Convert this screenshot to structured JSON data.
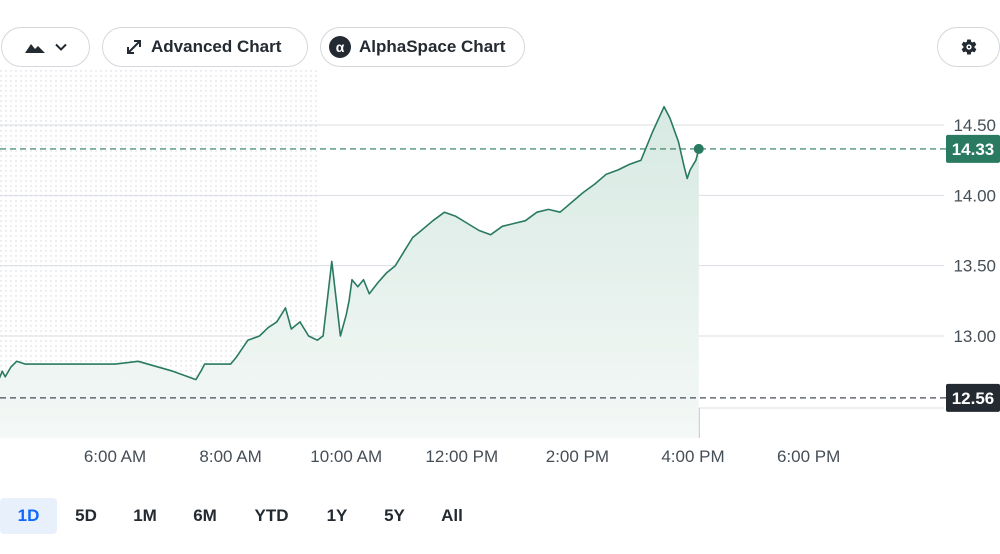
{
  "toolbar": {
    "chart_type_icon": "mountain-icon",
    "advanced_chart_label": "Advanced Chart",
    "alphaspace_chart_label": "AlphaSpace Chart",
    "alphaspace_badge": "α",
    "settings_icon": "gear-icon"
  },
  "range_tabs": [
    {
      "label": "1D",
      "active": true
    },
    {
      "label": "5D",
      "active": false
    },
    {
      "label": "1M",
      "active": false
    },
    {
      "label": "6M",
      "active": false
    },
    {
      "label": "YTD",
      "active": false
    },
    {
      "label": "1Y",
      "active": false
    },
    {
      "label": "5Y",
      "active": false
    },
    {
      "label": "All",
      "active": false
    }
  ],
  "colors": {
    "line": "#2a7a62",
    "area_top": "#d7e9e2",
    "current_tag": "#2a7a62",
    "previous_close_tag": "#232a31",
    "grid": "#d9dde2",
    "axis_text": "#464e56"
  },
  "chart_data": {
    "type": "area",
    "title": "",
    "xlabel": "",
    "ylabel": "",
    "x_ticks": [
      "6:00 AM",
      "8:00 AM",
      "10:00 AM",
      "12:00 PM",
      "2:00 PM",
      "4:00 PM",
      "6:00 PM"
    ],
    "y_ticks": [
      "13.00",
      "13.50",
      "14.00",
      "14.50"
    ],
    "ylim": [
      12.35,
      14.85
    ],
    "x_range_hours": [
      4.0,
      20.0
    ],
    "premarket_shaded_until": "9:30 AM",
    "current_price": "14.33",
    "previous_close": "12.56",
    "series": [
      {
        "x": [
          4.0,
          4.05,
          4.1,
          4.2,
          4.3,
          4.45,
          6.0,
          6.4,
          7.0,
          7.4,
          7.5,
          7.55,
          7.8,
          8.0,
          8.1,
          8.3,
          8.5,
          8.65,
          8.8,
          8.95,
          9.05,
          9.2,
          9.35,
          9.5,
          9.6,
          9.75,
          9.9,
          10.0,
          10.05,
          10.1,
          10.2,
          10.3,
          10.4,
          10.55,
          10.7,
          10.85,
          11.0,
          11.15,
          11.3,
          11.5,
          11.7,
          11.9,
          12.1,
          12.3,
          12.5,
          12.7,
          12.9,
          13.1,
          13.3,
          13.5,
          13.7,
          13.9,
          14.1,
          14.3,
          14.5,
          14.7,
          14.9,
          15.1,
          15.3,
          15.5,
          15.6,
          15.75,
          15.85,
          15.9,
          15.95,
          16.05,
          16.1
        ],
        "values": [
          12.7,
          12.75,
          12.71,
          12.78,
          12.82,
          12.8,
          12.8,
          12.82,
          12.75,
          12.69,
          12.76,
          12.8,
          12.8,
          12.8,
          12.85,
          12.97,
          13.0,
          13.06,
          13.1,
          13.2,
          13.05,
          13.1,
          13.0,
          12.97,
          13.0,
          13.53,
          13.0,
          13.15,
          13.25,
          13.4,
          13.35,
          13.4,
          13.3,
          13.38,
          13.45,
          13.5,
          13.6,
          13.7,
          13.75,
          13.82,
          13.88,
          13.85,
          13.8,
          13.75,
          13.72,
          13.78,
          13.8,
          13.82,
          13.88,
          13.9,
          13.88,
          13.95,
          14.02,
          14.08,
          14.15,
          14.18,
          14.22,
          14.25,
          14.45,
          14.63,
          14.55,
          14.38,
          14.2,
          14.12,
          14.18,
          14.25,
          14.33
        ]
      }
    ],
    "volume_bars_present": true
  }
}
